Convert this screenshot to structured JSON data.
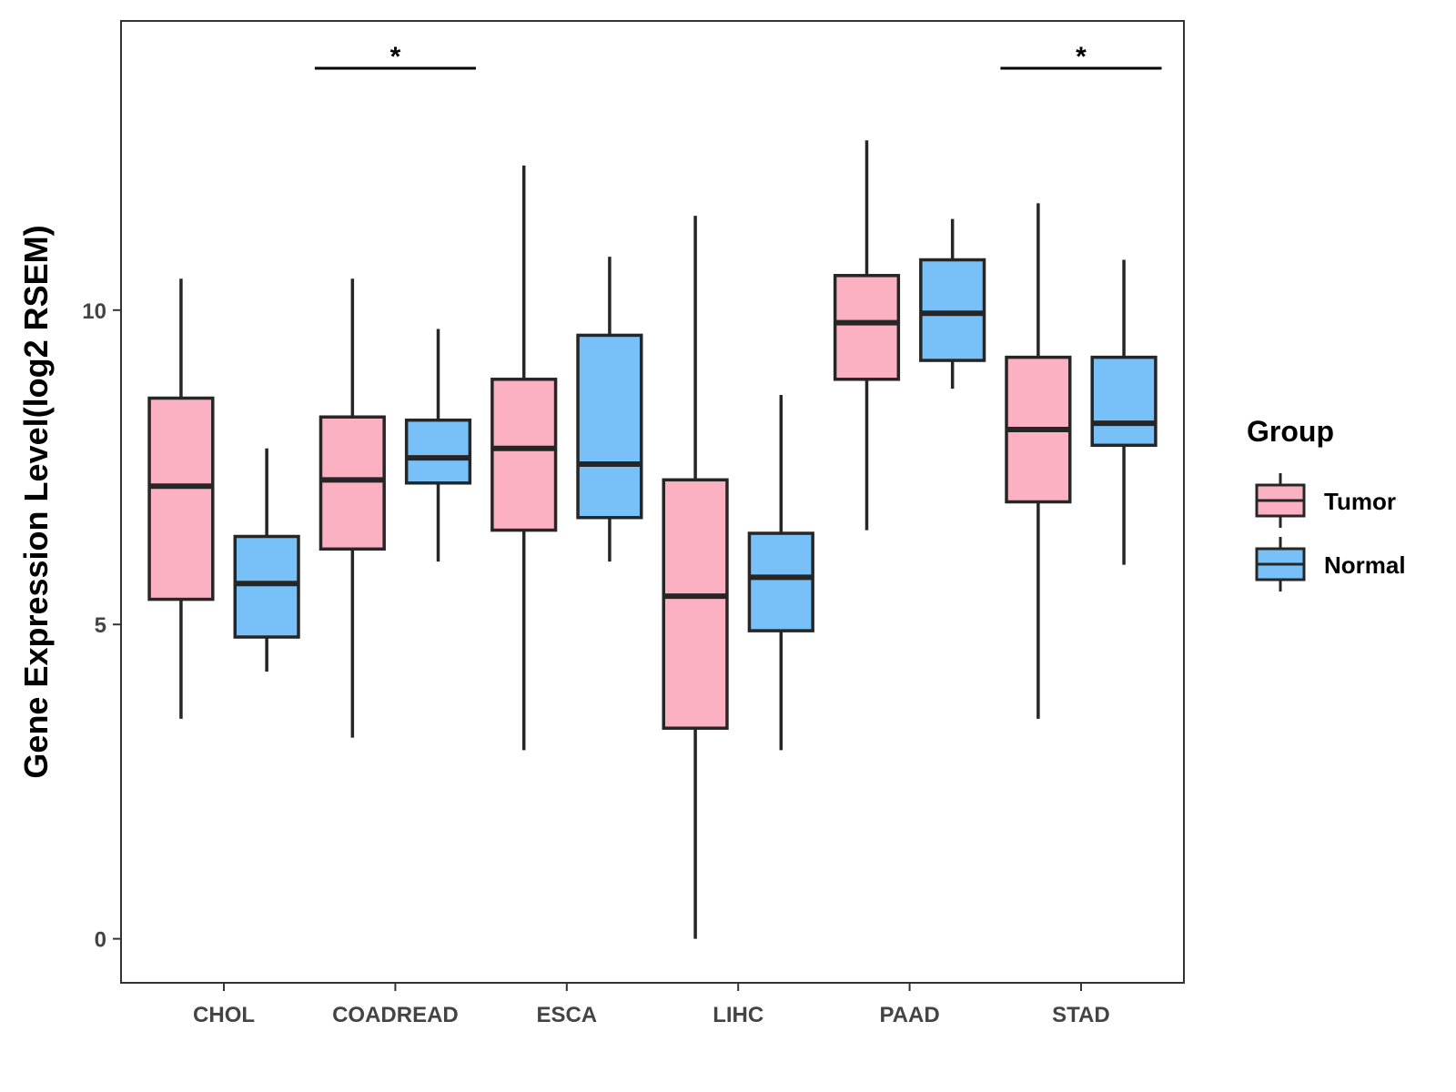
{
  "chart_data": {
    "type": "boxplot",
    "title": "",
    "xlabel": "",
    "ylabel": "Gene Expression Level(log2 RSEM)",
    "ylim": [
      -0.7,
      14.6
    ],
    "yticks": [
      0,
      5,
      10
    ],
    "categories": [
      "CHOL",
      "COADREAD",
      "ESCA",
      "LIHC",
      "PAAD",
      "STAD"
    ],
    "legend": {
      "title": "Group",
      "position": "right",
      "entries": [
        {
          "name": "Tumor",
          "color": "#FBB1C2"
        },
        {
          "name": "Normal",
          "color": "#78C1F8"
        }
      ]
    },
    "series": [
      {
        "name": "Tumor",
        "color": "#FBB1C2",
        "boxes": [
          {
            "category": "CHOL",
            "min": 3.5,
            "q1": 5.4,
            "median": 7.2,
            "q3": 8.6,
            "max": 10.5
          },
          {
            "category": "COADREAD",
            "min": 3.2,
            "q1": 6.2,
            "median": 7.3,
            "q3": 8.3,
            "max": 10.5
          },
          {
            "category": "ESCA",
            "min": 3.0,
            "q1": 6.5,
            "median": 7.8,
            "q3": 8.9,
            "max": 12.3
          },
          {
            "category": "LIHC",
            "min": 0.0,
            "q1": 3.35,
            "median": 5.45,
            "q3": 7.3,
            "max": 11.5
          },
          {
            "category": "PAAD",
            "min": 6.5,
            "q1": 8.9,
            "median": 9.8,
            "q3": 10.55,
            "max": 12.7
          },
          {
            "category": "STAD",
            "min": 3.5,
            "q1": 6.95,
            "median": 8.1,
            "q3": 9.25,
            "max": 11.7
          }
        ]
      },
      {
        "name": "Normal",
        "color": "#78C1F8",
        "boxes": [
          {
            "category": "CHOL",
            "min": 4.25,
            "q1": 4.8,
            "median": 5.65,
            "q3": 6.4,
            "max": 7.8
          },
          {
            "category": "COADREAD",
            "min": 6.0,
            "q1": 7.25,
            "median": 7.65,
            "q3": 8.25,
            "max": 9.7
          },
          {
            "category": "ESCA",
            "min": 6.0,
            "q1": 6.7,
            "median": 7.55,
            "q3": 9.6,
            "max": 10.85
          },
          {
            "category": "LIHC",
            "min": 3.0,
            "q1": 4.9,
            "median": 5.75,
            "q3": 6.45,
            "max": 8.65
          },
          {
            "category": "PAAD",
            "min": 8.75,
            "q1": 9.2,
            "median": 9.95,
            "q3": 10.8,
            "max": 11.45
          },
          {
            "category": "STAD",
            "min": 5.95,
            "q1": 7.85,
            "median": 8.2,
            "q3": 9.25,
            "max": 10.8
          }
        ]
      }
    ],
    "annotations": [
      {
        "category": "COADREAD",
        "label": "*"
      },
      {
        "category": "STAD",
        "label": "*"
      }
    ]
  }
}
